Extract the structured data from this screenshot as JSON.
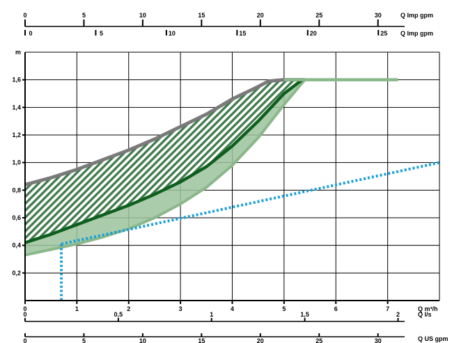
{
  "chart_data": {
    "type": "area",
    "title": "",
    "x_main": {
      "label": "Q m³/h",
      "ticks": [
        "0",
        "1",
        "2",
        "3",
        "4",
        "5",
        "6",
        "7"
      ],
      "range": [
        0,
        8
      ]
    },
    "x_ls": {
      "label": "Q l/s",
      "ticks": [
        "0",
        "0,5",
        "1",
        "1,5",
        "2"
      ],
      "values": [
        0,
        0.5,
        1,
        1.5,
        2
      ]
    },
    "x_imp": {
      "label": "Q US gpm",
      "ticks": [
        "0",
        "5",
        "10",
        "15",
        "20",
        "25",
        "30"
      ],
      "values": [
        0,
        5,
        10,
        15,
        20,
        25,
        30
      ]
    },
    "x_top1": {
      "label": "Q Imp gpm",
      "ticks": [
        "0",
        "5",
        "10",
        "15",
        "20",
        "25",
        "30"
      ],
      "values": [
        0,
        5,
        10,
        15,
        20,
        25,
        30
      ]
    },
    "x_top2": {
      "label": "Q Imp gpm",
      "ticks": [
        "0",
        "5",
        "10",
        "15",
        "20",
        "25"
      ],
      "values": [
        0,
        5,
        10,
        15,
        20,
        25
      ]
    },
    "y": {
      "label": "m",
      "ticks": [
        "0,2",
        "0,4",
        "0,6",
        "0,8",
        "1,0",
        "1,2",
        "1,4",
        "1,6"
      ],
      "range": [
        0,
        1.8
      ]
    },
    "grid": true,
    "series": [
      {
        "role": "upper-boundary",
        "color": "#7a7a7a",
        "x": [
          0,
          0.5,
          1,
          1.5,
          2,
          2.5,
          3,
          3.5,
          4,
          4.5,
          4.7,
          5,
          5.4
        ],
        "y": [
          0.84,
          0.89,
          0.95,
          1.02,
          1.09,
          1.17,
          1.26,
          1.35,
          1.46,
          1.55,
          1.59,
          1.6,
          1.6
        ]
      },
      {
        "role": "lower-boundary",
        "color": "#8ab88a",
        "x": [
          0,
          0.5,
          1,
          1.5,
          2,
          2.5,
          3,
          3.5,
          4,
          4.5,
          5,
          5.4
        ],
        "y": [
          0.33,
          0.37,
          0.41,
          0.46,
          0.52,
          0.6,
          0.7,
          0.82,
          0.98,
          1.18,
          1.42,
          1.6
        ]
      },
      {
        "role": "middle-curve",
        "color": "#0e5e1e",
        "x": [
          0,
          0.5,
          1,
          1.5,
          2,
          2.5,
          3,
          3.5,
          4,
          4.5,
          5,
          5.35
        ],
        "y": [
          0.42,
          0.48,
          0.55,
          0.62,
          0.69,
          0.77,
          0.86,
          0.97,
          1.12,
          1.3,
          1.5,
          1.6
        ]
      },
      {
        "role": "max-head-line",
        "color": "#8ab88a",
        "x": [
          5,
          7.2
        ],
        "y": [
          1.6,
          1.6
        ]
      },
      {
        "role": "system-curve",
        "color": "#1aa0d8",
        "dashed": true,
        "x": [
          0.7,
          8
        ],
        "y": [
          0.41,
          1.0
        ]
      },
      {
        "role": "operating-point-drop",
        "color": "#1aa0d8",
        "dashed": true,
        "x": [
          0.7,
          0.7
        ],
        "y": [
          0.41,
          0
        ]
      }
    ]
  }
}
